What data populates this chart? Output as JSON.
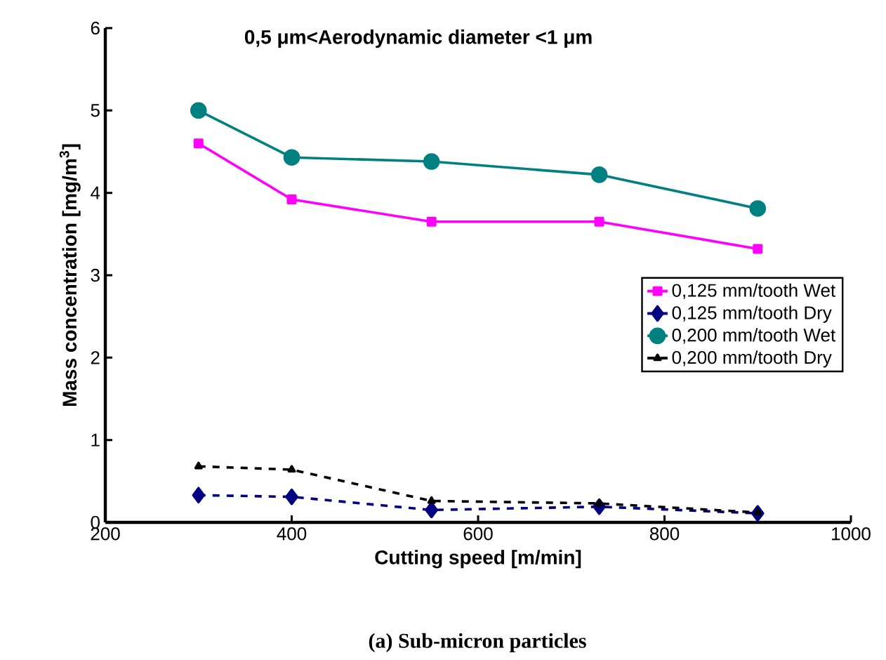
{
  "chart_data": {
    "type": "line",
    "title": "0,5 μm<Aerodynamic diameter <1 μm",
    "xlabel": "Cutting speed [m/min]",
    "ylabel": "Mass concentration [mg/m$^{3}$]",
    "annotations": [
      "(a) Sub-micron particles"
    ],
    "x": [
      300,
      400,
      550,
      730,
      900
    ],
    "xlim": [
      200,
      1000
    ],
    "xticks": [
      200,
      400,
      600,
      800,
      1000
    ],
    "ylim": [
      0,
      6
    ],
    "yticks": [
      0,
      1,
      2,
      3,
      4,
      5,
      6
    ],
    "grid": false,
    "legend": "right",
    "series": [
      {
        "name": "0,125 mm/tooth Wet",
        "color": "#ff00ff",
        "values": [
          4.6,
          3.92,
          3.65,
          3.65,
          3.32
        ],
        "marker": "square",
        "line_style": "solid"
      },
      {
        "name": "0,125 mm/tooth Dry",
        "color": "#000080",
        "values": [
          0.33,
          0.31,
          0.15,
          0.19,
          0.11
        ],
        "marker": "diamond",
        "line_style": "dashed"
      },
      {
        "name": "0,200 mm/tooth Wet",
        "color": "#008080",
        "values": [
          5.0,
          4.43,
          4.38,
          4.22,
          3.81
        ],
        "marker": "circle",
        "line_style": "solid"
      },
      {
        "name": "0,200 mm/tooth Dry",
        "color": "#000000",
        "values": [
          0.68,
          0.64,
          0.26,
          0.23,
          0.12
        ],
        "marker": "triangle",
        "line_style": "dashed"
      }
    ]
  }
}
